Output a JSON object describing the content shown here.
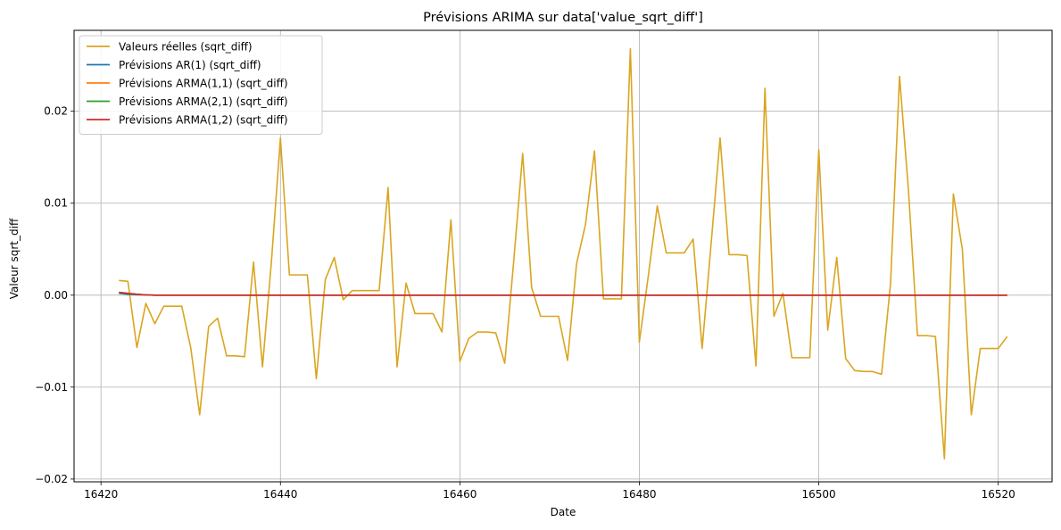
{
  "chart_data": {
    "type": "line",
    "title": "Prévisions ARIMA sur data['value_sqrt_diff']",
    "xlabel": "Date",
    "ylabel": "Valeur sqrt_diff",
    "xlim": [
      16417,
      16526
    ],
    "ylim": [
      -0.0203,
      0.0288
    ],
    "xticks": [
      16420,
      16440,
      16460,
      16480,
      16500,
      16520
    ],
    "xtick_labels": [
      "16420",
      "16440",
      "16460",
      "16480",
      "16500",
      "16520"
    ],
    "yticks": [
      -0.02,
      -0.01,
      0.0,
      0.01,
      0.02
    ],
    "ytick_labels": [
      "−0.02",
      "−0.01",
      "0.00",
      "0.01",
      "0.02"
    ],
    "grid": true,
    "legend_position": "upper-left",
    "series": [
      {
        "name": "Valeurs réelles (sqrt_diff)",
        "color": "#daa520",
        "x": [
          16422,
          16423,
          16424,
          16425,
          16426,
          16427,
          16428,
          16429,
          16430,
          16431,
          16432,
          16433,
          16434,
          16435,
          16436,
          16437,
          16438,
          16439,
          16440,
          16441,
          16442,
          16443,
          16444,
          16445,
          16446,
          16447,
          16448,
          16449,
          16450,
          16451,
          16452,
          16453,
          16454,
          16455,
          16456,
          16457,
          16458,
          16459,
          16460,
          16461,
          16462,
          16463,
          16464,
          16465,
          16466,
          16467,
          16468,
          16469,
          16470,
          16471,
          16472,
          16473,
          16474,
          16475,
          16476,
          16477,
          16478,
          16479,
          16480,
          16481,
          16482,
          16483,
          16484,
          16485,
          16486,
          16487,
          16488,
          16489,
          16490,
          16491,
          16492,
          16493,
          16494,
          16495,
          16496,
          16497,
          16498,
          16499,
          16500,
          16501,
          16502,
          16503,
          16504,
          16505,
          16506,
          16507,
          16508,
          16509,
          16510,
          16511,
          16512,
          16513,
          16514,
          16515,
          16516,
          16517,
          16518,
          16519,
          16520,
          16521
        ],
        "y": [
          0.0016,
          0.0015,
          -0.0057,
          -0.0009,
          -0.0031,
          -0.0012,
          -0.0012,
          -0.0012,
          -0.0057,
          -0.013,
          -0.0034,
          -0.0025,
          -0.0066,
          -0.0066,
          -0.0067,
          0.0036,
          -0.0078,
          0.0037,
          0.0171,
          0.0022,
          0.0022,
          0.0022,
          -0.0091,
          0.0017,
          0.0041,
          -0.0005,
          0.0005,
          0.0005,
          0.0005,
          0.0005,
          0.0117,
          -0.0078,
          0.0013,
          -0.002,
          -0.002,
          -0.002,
          -0.004,
          0.0082,
          -0.0072,
          -0.0047,
          -0.004,
          -0.004,
          -0.0041,
          -0.0074,
          0.0037,
          0.0154,
          0.0008,
          -0.0023,
          -0.0023,
          -0.0023,
          -0.0071,
          0.0034,
          0.0077,
          0.0157,
          -0.0004,
          -0.0004,
          -0.0004,
          0.0268,
          -0.0051,
          0.0021,
          0.0097,
          0.0046,
          0.0046,
          0.0046,
          0.0061,
          -0.0058,
          0.0056,
          0.0171,
          0.0044,
          0.0044,
          0.0043,
          -0.0077,
          0.0225,
          -0.0023,
          0.0002,
          -0.0068,
          -0.0068,
          -0.0068,
          0.0158,
          -0.0038,
          0.0041,
          -0.0069,
          -0.0082,
          -0.0083,
          -0.0083,
          -0.0086,
          0.0013,
          0.0238,
          0.0113,
          -0.0044,
          -0.0044,
          -0.0045,
          -0.0178,
          0.011,
          0.005,
          -0.013,
          -0.0058,
          -0.0058,
          -0.0058,
          -0.0045
        ]
      },
      {
        "name": "Prévisions AR(1) (sqrt_diff)",
        "color": "#1f77b4",
        "x": [
          16422,
          16423,
          16424,
          16425,
          16426,
          16430,
          16440,
          16460,
          16480,
          16500,
          16521
        ],
        "y": [
          0.0002,
          0.0001,
          5e-05,
          2e-05,
          0.0,
          0.0,
          0.0,
          0.0,
          0.0,
          0.0,
          0.0
        ]
      },
      {
        "name": "Prévisions ARMA(1,1) (sqrt_diff)",
        "color": "#ff7f0e",
        "x": [
          16422,
          16423,
          16424,
          16425,
          16426,
          16430,
          16440,
          16460,
          16480,
          16500,
          16521
        ],
        "y": [
          0.0003,
          0.0002,
          0.0001,
          3e-05,
          0.0,
          0.0,
          0.0,
          0.0,
          0.0,
          0.0,
          0.0
        ]
      },
      {
        "name": "Prévisions ARMA(2,1) (sqrt_diff)",
        "color": "#2ca02c",
        "x": [
          16422,
          16423,
          16424,
          16425,
          16426,
          16430,
          16440,
          16460,
          16480,
          16500,
          16521
        ],
        "y": [
          0.0003,
          0.0002,
          0.0001,
          3e-05,
          0.0,
          0.0,
          0.0,
          0.0,
          0.0,
          0.0,
          0.0
        ]
      },
      {
        "name": "Prévisions ARMA(1,2) (sqrt_diff)",
        "color": "#d62728",
        "x": [
          16422,
          16423,
          16424,
          16425,
          16426,
          16430,
          16440,
          16460,
          16480,
          16500,
          16521
        ],
        "y": [
          0.0003,
          0.0002,
          0.0001,
          3e-05,
          0.0,
          0.0,
          0.0,
          0.0,
          0.0,
          0.0,
          0.0
        ]
      }
    ]
  }
}
